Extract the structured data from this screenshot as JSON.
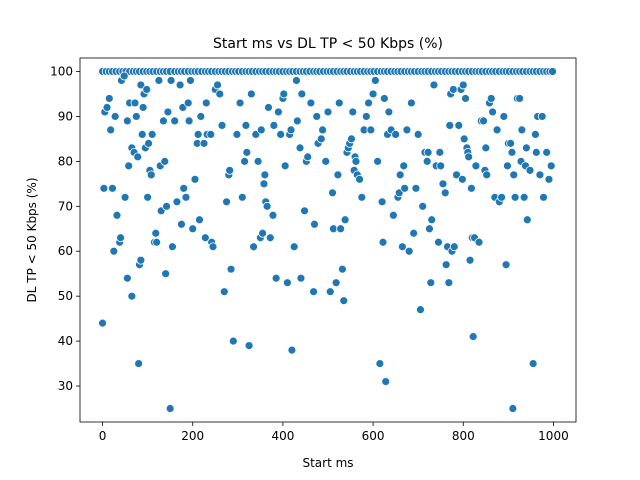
{
  "chart_data": {
    "type": "scatter",
    "title": "Start ms vs DL TP < 50 Kbps (%)",
    "xlabel": "Start ms",
    "ylabel": "DL TP < 50 Kbps (%)",
    "xlim": [
      -50,
      1050
    ],
    "ylim": [
      22,
      103
    ],
    "xticks": [
      0,
      200,
      400,
      600,
      800,
      1000
    ],
    "yticks": [
      30,
      40,
      50,
      60,
      70,
      80,
      90,
      100
    ],
    "grid": false,
    "legend": "none",
    "marker_color": "#1f77b4",
    "marker_edge": "#ffffff",
    "points": [
      [
        0,
        100
      ],
      [
        8,
        100
      ],
      [
        15,
        100
      ],
      [
        22,
        100
      ],
      [
        30,
        100
      ],
      [
        38,
        100
      ],
      [
        45,
        100
      ],
      [
        52,
        100
      ],
      [
        60,
        100
      ],
      [
        68,
        100
      ],
      [
        75,
        100
      ],
      [
        82,
        100
      ],
      [
        90,
        100
      ],
      [
        98,
        100
      ],
      [
        105,
        100
      ],
      [
        112,
        100
      ],
      [
        120,
        100
      ],
      [
        128,
        100
      ],
      [
        135,
        100
      ],
      [
        142,
        100
      ],
      [
        150,
        100
      ],
      [
        160,
        100
      ],
      [
        168,
        100
      ],
      [
        175,
        100
      ],
      [
        182,
        100
      ],
      [
        190,
        100
      ],
      [
        198,
        100
      ],
      [
        205,
        100
      ],
      [
        212,
        100
      ],
      [
        220,
        100
      ],
      [
        228,
        100
      ],
      [
        235,
        100
      ],
      [
        242,
        100
      ],
      [
        250,
        100
      ],
      [
        258,
        100
      ],
      [
        265,
        100
      ],
      [
        272,
        100
      ],
      [
        280,
        100
      ],
      [
        288,
        100
      ],
      [
        295,
        100
      ],
      [
        302,
        100
      ],
      [
        310,
        100
      ],
      [
        318,
        100
      ],
      [
        325,
        100
      ],
      [
        332,
        100
      ],
      [
        340,
        100
      ],
      [
        348,
        100
      ],
      [
        355,
        100
      ],
      [
        362,
        100
      ],
      [
        370,
        100
      ],
      [
        378,
        100
      ],
      [
        385,
        100
      ],
      [
        392,
        100
      ],
      [
        400,
        100
      ],
      [
        408,
        100
      ],
      [
        415,
        100
      ],
      [
        422,
        100
      ],
      [
        430,
        100
      ],
      [
        438,
        100
      ],
      [
        445,
        100
      ],
      [
        452,
        100
      ],
      [
        460,
        100
      ],
      [
        468,
        100
      ],
      [
        475,
        100
      ],
      [
        482,
        100
      ],
      [
        490,
        100
      ],
      [
        498,
        100
      ],
      [
        505,
        100
      ],
      [
        512,
        100
      ],
      [
        520,
        100
      ],
      [
        528,
        100
      ],
      [
        535,
        100
      ],
      [
        542,
        100
      ],
      [
        550,
        100
      ],
      [
        558,
        100
      ],
      [
        565,
        100
      ],
      [
        572,
        100
      ],
      [
        580,
        100
      ],
      [
        588,
        100
      ],
      [
        595,
        100
      ],
      [
        602,
        100
      ],
      [
        610,
        100
      ],
      [
        618,
        100
      ],
      [
        625,
        100
      ],
      [
        632,
        100
      ],
      [
        640,
        100
      ],
      [
        648,
        100
      ],
      [
        655,
        100
      ],
      [
        662,
        100
      ],
      [
        670,
        100
      ],
      [
        678,
        100
      ],
      [
        685,
        100
      ],
      [
        692,
        100
      ],
      [
        700,
        100
      ],
      [
        708,
        100
      ],
      [
        715,
        100
      ],
      [
        722,
        100
      ],
      [
        730,
        100
      ],
      [
        738,
        100
      ],
      [
        745,
        100
      ],
      [
        752,
        100
      ],
      [
        760,
        100
      ],
      [
        768,
        100
      ],
      [
        775,
        100
      ],
      [
        782,
        100
      ],
      [
        790,
        100
      ],
      [
        798,
        100
      ],
      [
        805,
        100
      ],
      [
        812,
        100
      ],
      [
        820,
        100
      ],
      [
        828,
        100
      ],
      [
        835,
        100
      ],
      [
        842,
        100
      ],
      [
        850,
        100
      ],
      [
        858,
        100
      ],
      [
        865,
        100
      ],
      [
        872,
        100
      ],
      [
        880,
        100
      ],
      [
        888,
        100
      ],
      [
        895,
        100
      ],
      [
        902,
        100
      ],
      [
        910,
        100
      ],
      [
        918,
        100
      ],
      [
        925,
        100
      ],
      [
        932,
        100
      ],
      [
        940,
        100
      ],
      [
        948,
        100
      ],
      [
        955,
        100
      ],
      [
        962,
        100
      ],
      [
        970,
        100
      ],
      [
        978,
        100
      ],
      [
        985,
        100
      ],
      [
        992,
        100
      ],
      [
        998,
        100
      ],
      [
        0,
        44
      ],
      [
        3,
        74
      ],
      [
        5,
        91
      ],
      [
        10,
        92
      ],
      [
        15,
        94
      ],
      [
        18,
        87
      ],
      [
        22,
        74
      ],
      [
        25,
        60
      ],
      [
        28,
        90
      ],
      [
        32,
        68
      ],
      [
        38,
        62
      ],
      [
        40,
        63
      ],
      [
        42,
        98
      ],
      [
        48,
        99
      ],
      [
        50,
        72
      ],
      [
        55,
        54
      ],
      [
        55,
        89
      ],
      [
        58,
        79
      ],
      [
        60,
        93
      ],
      [
        65,
        83
      ],
      [
        65,
        50
      ],
      [
        70,
        82
      ],
      [
        72,
        93
      ],
      [
        75,
        90
      ],
      [
        78,
        81
      ],
      [
        80,
        35
      ],
      [
        82,
        57
      ],
      [
        85,
        58
      ],
      [
        85,
        97
      ],
      [
        88,
        86
      ],
      [
        90,
        92
      ],
      [
        92,
        95
      ],
      [
        95,
        83
      ],
      [
        98,
        96
      ],
      [
        100,
        72
      ],
      [
        102,
        84
      ],
      [
        105,
        78
      ],
      [
        108,
        77
      ],
      [
        110,
        86
      ],
      [
        115,
        62
      ],
      [
        118,
        64
      ],
      [
        120,
        62
      ],
      [
        125,
        98
      ],
      [
        128,
        79
      ],
      [
        130,
        69
      ],
      [
        135,
        89
      ],
      [
        138,
        80
      ],
      [
        140,
        55
      ],
      [
        142,
        70
      ],
      [
        145,
        91
      ],
      [
        150,
        25
      ],
      [
        152,
        98
      ],
      [
        155,
        61
      ],
      [
        160,
        89
      ],
      [
        165,
        71
      ],
      [
        172,
        97
      ],
      [
        175,
        66
      ],
      [
        178,
        92
      ],
      [
        180,
        74
      ],
      [
        185,
        72
      ],
      [
        190,
        93
      ],
      [
        192,
        89
      ],
      [
        195,
        98
      ],
      [
        200,
        65
      ],
      [
        205,
        76
      ],
      [
        210,
        84
      ],
      [
        212,
        86
      ],
      [
        215,
        67
      ],
      [
        218,
        90
      ],
      [
        225,
        84
      ],
      [
        228,
        63
      ],
      [
        230,
        93
      ],
      [
        232,
        86
      ],
      [
        240,
        86
      ],
      [
        242,
        62
      ],
      [
        245,
        61
      ],
      [
        250,
        96
      ],
      [
        255,
        97
      ],
      [
        260,
        95
      ],
      [
        265,
        88
      ],
      [
        270,
        51
      ],
      [
        275,
        71
      ],
      [
        280,
        77
      ],
      [
        282,
        78
      ],
      [
        285,
        56
      ],
      [
        290,
        40
      ],
      [
        298,
        86
      ],
      [
        305,
        93
      ],
      [
        310,
        72
      ],
      [
        315,
        80
      ],
      [
        318,
        88
      ],
      [
        320,
        82
      ],
      [
        325,
        39
      ],
      [
        330,
        95
      ],
      [
        335,
        61
      ],
      [
        340,
        86
      ],
      [
        345,
        80
      ],
      [
        350,
        63
      ],
      [
        352,
        87
      ],
      [
        355,
        64
      ],
      [
        358,
        75
      ],
      [
        360,
        77
      ],
      [
        362,
        71
      ],
      [
        365,
        70
      ],
      [
        368,
        92
      ],
      [
        372,
        63
      ],
      [
        378,
        68
      ],
      [
        380,
        88
      ],
      [
        385,
        54
      ],
      [
        390,
        91
      ],
      [
        395,
        86
      ],
      [
        400,
        94
      ],
      [
        402,
        95
      ],
      [
        405,
        79
      ],
      [
        410,
        53
      ],
      [
        415,
        86
      ],
      [
        418,
        87
      ],
      [
        420,
        38
      ],
      [
        425,
        61
      ],
      [
        430,
        98
      ],
      [
        432,
        89
      ],
      [
        438,
        83
      ],
      [
        440,
        54
      ],
      [
        442,
        95
      ],
      [
        448,
        69
      ],
      [
        452,
        80
      ],
      [
        455,
        81
      ],
      [
        462,
        93
      ],
      [
        468,
        51
      ],
      [
        470,
        66
      ],
      [
        475,
        90
      ],
      [
        478,
        84
      ],
      [
        485,
        85
      ],
      [
        488,
        87
      ],
      [
        495,
        80
      ],
      [
        500,
        91
      ],
      [
        505,
        51
      ],
      [
        510,
        73
      ],
      [
        512,
        65
      ],
      [
        518,
        53
      ],
      [
        522,
        77
      ],
      [
        525,
        93
      ],
      [
        528,
        65
      ],
      [
        532,
        56
      ],
      [
        535,
        49
      ],
      [
        538,
        67
      ],
      [
        542,
        82
      ],
      [
        545,
        83
      ],
      [
        548,
        84
      ],
      [
        552,
        85
      ],
      [
        555,
        91
      ],
      [
        558,
        78
      ],
      [
        560,
        81
      ],
      [
        562,
        80
      ],
      [
        565,
        77
      ],
      [
        570,
        76
      ],
      [
        575,
        72
      ],
      [
        580,
        87
      ],
      [
        585,
        90
      ],
      [
        590,
        93
      ],
      [
        595,
        87
      ],
      [
        600,
        95
      ],
      [
        605,
        98
      ],
      [
        610,
        80
      ],
      [
        615,
        35
      ],
      [
        620,
        71
      ],
      [
        622,
        62
      ],
      [
        625,
        94
      ],
      [
        628,
        31
      ],
      [
        632,
        86
      ],
      [
        635,
        91
      ],
      [
        640,
        87
      ],
      [
        645,
        68
      ],
      [
        650,
        86
      ],
      [
        655,
        72
      ],
      [
        658,
        73
      ],
      [
        660,
        77
      ],
      [
        665,
        61
      ],
      [
        668,
        79
      ],
      [
        670,
        74
      ],
      [
        675,
        87
      ],
      [
        680,
        60
      ],
      [
        685,
        93
      ],
      [
        690,
        64
      ],
      [
        695,
        74
      ],
      [
        700,
        86
      ],
      [
        705,
        47
      ],
      [
        710,
        70
      ],
      [
        715,
        82
      ],
      [
        720,
        80
      ],
      [
        722,
        82
      ],
      [
        725,
        65
      ],
      [
        728,
        53
      ],
      [
        730,
        67
      ],
      [
        735,
        97
      ],
      [
        740,
        79
      ],
      [
        745,
        62
      ],
      [
        748,
        82
      ],
      [
        750,
        79
      ],
      [
        755,
        75
      ],
      [
        760,
        73
      ],
      [
        762,
        57
      ],
      [
        765,
        61
      ],
      [
        768,
        53
      ],
      [
        770,
        88
      ],
      [
        772,
        95
      ],
      [
        775,
        60
      ],
      [
        778,
        96
      ],
      [
        780,
        61
      ],
      [
        785,
        77
      ],
      [
        790,
        88
      ],
      [
        795,
        96
      ],
      [
        798,
        76
      ],
      [
        800,
        97
      ],
      [
        802,
        85
      ],
      [
        805,
        94
      ],
      [
        808,
        83
      ],
      [
        810,
        82
      ],
      [
        812,
        81
      ],
      [
        815,
        58
      ],
      [
        818,
        74
      ],
      [
        820,
        63
      ],
      [
        822,
        41
      ],
      [
        825,
        63
      ],
      [
        828,
        79
      ],
      [
        835,
        62
      ],
      [
        840,
        89
      ],
      [
        845,
        89
      ],
      [
        848,
        78
      ],
      [
        850,
        83
      ],
      [
        852,
        77
      ],
      [
        858,
        93
      ],
      [
        862,
        94
      ],
      [
        865,
        91
      ],
      [
        870,
        72
      ],
      [
        875,
        87
      ],
      [
        880,
        71
      ],
      [
        885,
        72
      ],
      [
        890,
        90
      ],
      [
        895,
        57
      ],
      [
        898,
        79
      ],
      [
        900,
        84
      ],
      [
        905,
        84
      ],
      [
        908,
        82
      ],
      [
        910,
        25
      ],
      [
        912,
        77
      ],
      [
        915,
        72
      ],
      [
        920,
        94
      ],
      [
        925,
        94
      ],
      [
        928,
        80
      ],
      [
        930,
        87
      ],
      [
        935,
        72
      ],
      [
        938,
        79
      ],
      [
        940,
        83
      ],
      [
        942,
        67
      ],
      [
        948,
        78
      ],
      [
        955,
        35
      ],
      [
        960,
        86
      ],
      [
        962,
        82
      ],
      [
        965,
        90
      ],
      [
        970,
        77
      ],
      [
        975,
        90
      ],
      [
        978,
        72
      ],
      [
        985,
        82
      ],
      [
        990,
        76
      ],
      [
        995,
        79
      ]
    ]
  }
}
